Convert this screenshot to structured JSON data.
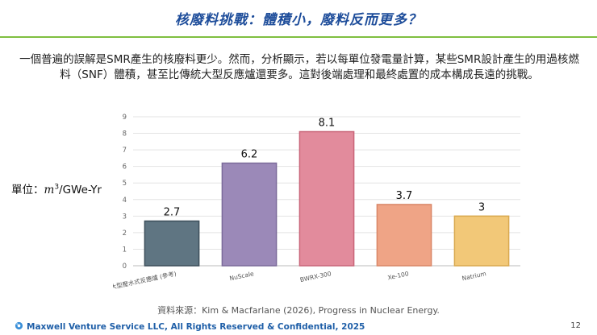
{
  "header": {
    "title": "核廢料挑戰：體積小，廢料反而更多？"
  },
  "intro": {
    "text": "一個普遍的誤解是SMR產生的核廢料更少。然而，分析顯示，若以每單位發電量計算，某些SMR設計產生的用過核燃料（SNF）體積，甚至比傳統大型反應爐還要多。這對後端處理和最終處置的成本構成長遠的挑戰。"
  },
  "unit_label": {
    "prefix": "單位：",
    "var": "m",
    "exp": "3",
    "suffix": "/GWe-Yr"
  },
  "chart_data": {
    "type": "bar",
    "title": "",
    "xlabel": "",
    "ylabel": "",
    "ylim": [
      0,
      9
    ],
    "yticks": [
      0,
      1,
      2,
      3,
      4,
      5,
      6,
      7,
      8,
      9
    ],
    "categories": [
      "大型壓水式反應爐 (參考)",
      "NuScale",
      "BWRX-300",
      "Xe-100",
      "Natrium"
    ],
    "values": [
      2.7,
      6.2,
      8.1,
      3.7,
      3
    ],
    "value_labels": [
      "2.7",
      "6.2",
      "8.1",
      "3.7",
      "3"
    ],
    "fill_colors": [
      "#5f7582",
      "#9b89b8",
      "#e28b9c",
      "#efa486",
      "#f2c878"
    ],
    "edge_colors": [
      "#3d4f5b",
      "#7b6a9a",
      "#c96579",
      "#d98667",
      "#d9a94f"
    ],
    "grid": true
  },
  "source": {
    "text": "資料來源：Kim & Macfarlane (2026), Progress in Nuclear Energy."
  },
  "footer": {
    "company": "Maxwell Venture Service LLC, All Rights Reserved & Confidential, 2025",
    "page_number": "12"
  }
}
